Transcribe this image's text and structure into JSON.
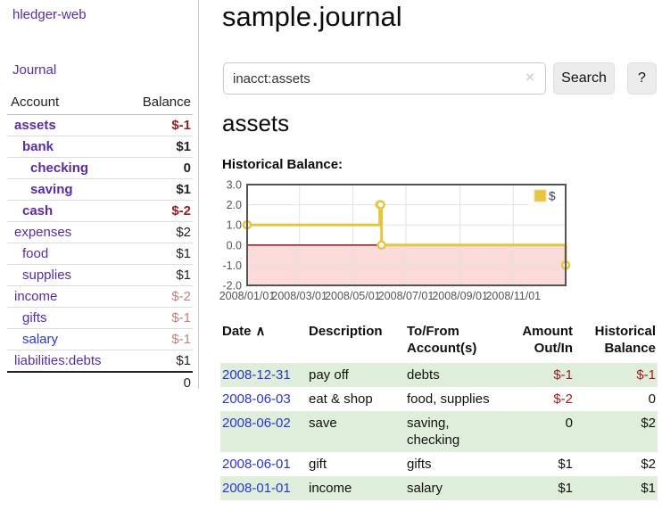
{
  "app": {
    "brand": "hledger-web",
    "nav": {
      "journal": "Journal"
    }
  },
  "sidebar": {
    "header": {
      "account": "Account",
      "balance": "Balance"
    },
    "accounts": [
      {
        "name": "assets",
        "balance": "$-1"
      },
      {
        "name": "bank",
        "balance": "$1"
      },
      {
        "name": "checking",
        "balance": "0"
      },
      {
        "name": "saving",
        "balance": "$1"
      },
      {
        "name": "cash",
        "balance": "$-2"
      },
      {
        "name": "expenses",
        "balance": "$2"
      },
      {
        "name": "food",
        "balance": "$1"
      },
      {
        "name": "supplies",
        "balance": "$1"
      },
      {
        "name": "income",
        "balance": "$-2"
      },
      {
        "name": "gifts",
        "balance": "$-1"
      },
      {
        "name": "salary",
        "balance": "$-1"
      },
      {
        "name": "liabilities:debts",
        "balance": "$1"
      }
    ],
    "total": "0"
  },
  "main": {
    "title": "sample.journal",
    "search": {
      "value": "inacct:assets",
      "clear_icon": "×",
      "search_button": "Search",
      "help_button": "?"
    },
    "account_heading": "assets",
    "chart_heading": "Historical Balance:"
  },
  "chart_data": {
    "type": "line",
    "step": true,
    "title": "Historical Balance:",
    "x_range": [
      "2008-01-01",
      "2008-12-31"
    ],
    "ylim": [
      -2,
      3
    ],
    "x_ticks": [
      "2008/01/01",
      "2008/03/01",
      "2008/05/01",
      "2008/07/01",
      "2008/09/01",
      "2008/11/01"
    ],
    "y_ticks": [
      "3.0",
      "2.0",
      "1.0",
      "0.0",
      "-1.0",
      "-2.0"
    ],
    "series": [
      {
        "name": "$",
        "color": "#e8c53f",
        "points": [
          [
            "2008-01-01",
            1
          ],
          [
            "2008-06-01",
            2
          ],
          [
            "2008-06-02",
            2
          ],
          [
            "2008-06-03",
            0
          ],
          [
            "2008-12-31",
            -1
          ]
        ]
      }
    ],
    "legend": {
      "label": "$",
      "position": "top-right"
    },
    "grid": true,
    "negative_region_color": "#fbdada",
    "zero_line_color": "#8b0000",
    "border_color": "#545454"
  },
  "register": {
    "columns": [
      "Date",
      "Description",
      "To/From Account(s)",
      "Amount Out/In",
      "Historical Balance"
    ],
    "sort_icon": "∧",
    "rows": [
      {
        "date": "2008-12-31",
        "description": "pay off",
        "accounts": "debts",
        "amount": "$-1",
        "balance": "$-1"
      },
      {
        "date": "2008-06-03",
        "description": "eat & shop",
        "accounts": "food, supplies",
        "amount": "$-2",
        "balance": "0"
      },
      {
        "date": "2008-06-02",
        "description": "save",
        "accounts": "saving, checking",
        "amount": "0",
        "balance": "$2"
      },
      {
        "date": "2008-06-01",
        "description": "gift",
        "accounts": "gifts",
        "amount": "$1",
        "balance": "$2"
      },
      {
        "date": "2008-01-01",
        "description": "income",
        "accounts": "salary",
        "amount": "$1",
        "balance": "$1"
      }
    ]
  }
}
